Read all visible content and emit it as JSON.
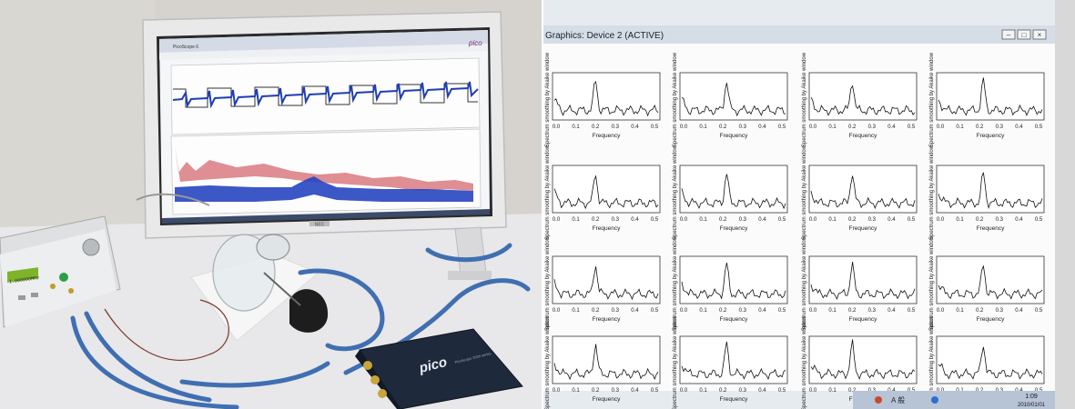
{
  "monitor": {
    "brand_badge": "NEC",
    "app_logo": "pico",
    "window_title": "PicoScope 6"
  },
  "device": {
    "scope_logo": "pico",
    "scope_label": "PicoScope 2000 series",
    "generator_display": "1.000000MHz"
  },
  "graphics_window": {
    "title": "Graphics: Device 2 (ACTIVE)",
    "x_axis_label": "Frequency",
    "x_ticks": [
      "0.0",
      "0.1",
      "0.2",
      "0.3",
      "0.4",
      "0.5"
    ],
    "panel_title": "Spectrum smoothing by Akaike window",
    "controls": [
      "–",
      "□",
      "×"
    ]
  },
  "taskbar": {
    "time": "1:09",
    "date": "2010/01/01",
    "tray_text": "A 般"
  }
}
